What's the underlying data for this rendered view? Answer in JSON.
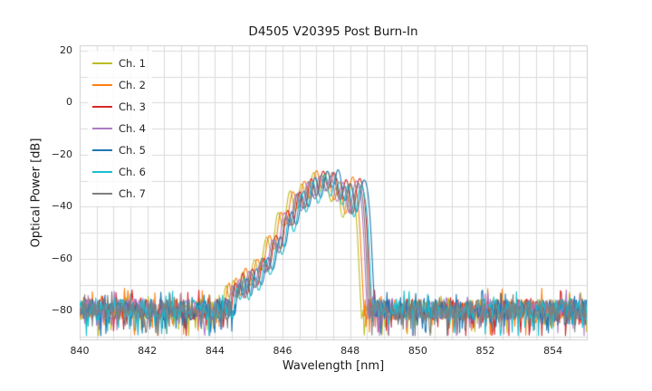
{
  "chart_data": {
    "type": "line",
    "title": "D4505 V20395 Post Burn-In",
    "xlabel": "Wavelength [nm]",
    "ylabel": "Optical Power [dB]",
    "xlim": [
      840,
      855
    ],
    "ylim": [
      -91,
      22
    ],
    "xticks": [
      840,
      842,
      844,
      846,
      848,
      850,
      852,
      854
    ],
    "yticks": [
      20,
      0,
      -20,
      -40,
      -60,
      -80
    ],
    "grid": true,
    "grid_color": "#dadada",
    "frame_color": "#cfcfcf",
    "background": "#ffffff",
    "minor_grid_x_step": 0.5,
    "minor_grid_y_step": 10,
    "legend_position": "upper left",
    "noise_floor": {
      "mean": -79.5,
      "band": 4.0,
      "spike_depth": 9,
      "spike_up": 4.5,
      "min": -89.5
    },
    "envelope_base": [
      [
        844.5,
        -81
      ],
      [
        844.62,
        -65
      ],
      [
        844.72,
        -77
      ],
      [
        844.85,
        -63
      ],
      [
        844.97,
        -78
      ],
      [
        845.12,
        -61
      ],
      [
        845.28,
        -74
      ],
      [
        845.46,
        -56
      ],
      [
        845.62,
        -68
      ],
      [
        845.82,
        -47
      ],
      [
        845.98,
        -60
      ],
      [
        846.16,
        -37.5
      ],
      [
        846.32,
        -51
      ],
      [
        846.52,
        -29.5
      ],
      [
        846.68,
        -44
      ],
      [
        846.86,
        -25
      ],
      [
        847.03,
        -40
      ],
      [
        847.22,
        -22.5
      ],
      [
        847.38,
        -37
      ],
      [
        847.56,
        -23
      ],
      [
        847.73,
        -41
      ],
      [
        847.92,
        -26
      ],
      [
        848.08,
        -47
      ],
      [
        848.26,
        -27.5
      ],
      [
        848.4,
        -32
      ],
      [
        848.5,
        -44
      ],
      [
        848.58,
        -68
      ],
      [
        848.64,
        -82
      ]
    ],
    "series": [
      {
        "name": "Ch. 1",
        "color": "#bcbd22",
        "dx": -0.3,
        "dy": -1,
        "seed": 101
      },
      {
        "name": "Ch. 2",
        "color": "#ff7f0e",
        "dx": -0.22,
        "dy": 0,
        "seed": 202
      },
      {
        "name": "Ch. 3",
        "color": "#d62728",
        "dx": -0.02,
        "dy": 0,
        "seed": 303
      },
      {
        "name": "Ch. 4",
        "color": "#af7ac5",
        "dx": -0.12,
        "dy": -1,
        "seed": 404
      },
      {
        "name": "Ch. 5",
        "color": "#1f77b4",
        "dx": 0.1,
        "dy": 0,
        "seed": 505
      },
      {
        "name": "Ch. 6",
        "color": "#17becf",
        "dx": 0.03,
        "dy": -2,
        "seed": 606
      },
      {
        "name": "Ch. 7",
        "color": "#7f7f7f",
        "dx": -0.07,
        "dy": -1,
        "seed": 707
      }
    ]
  }
}
